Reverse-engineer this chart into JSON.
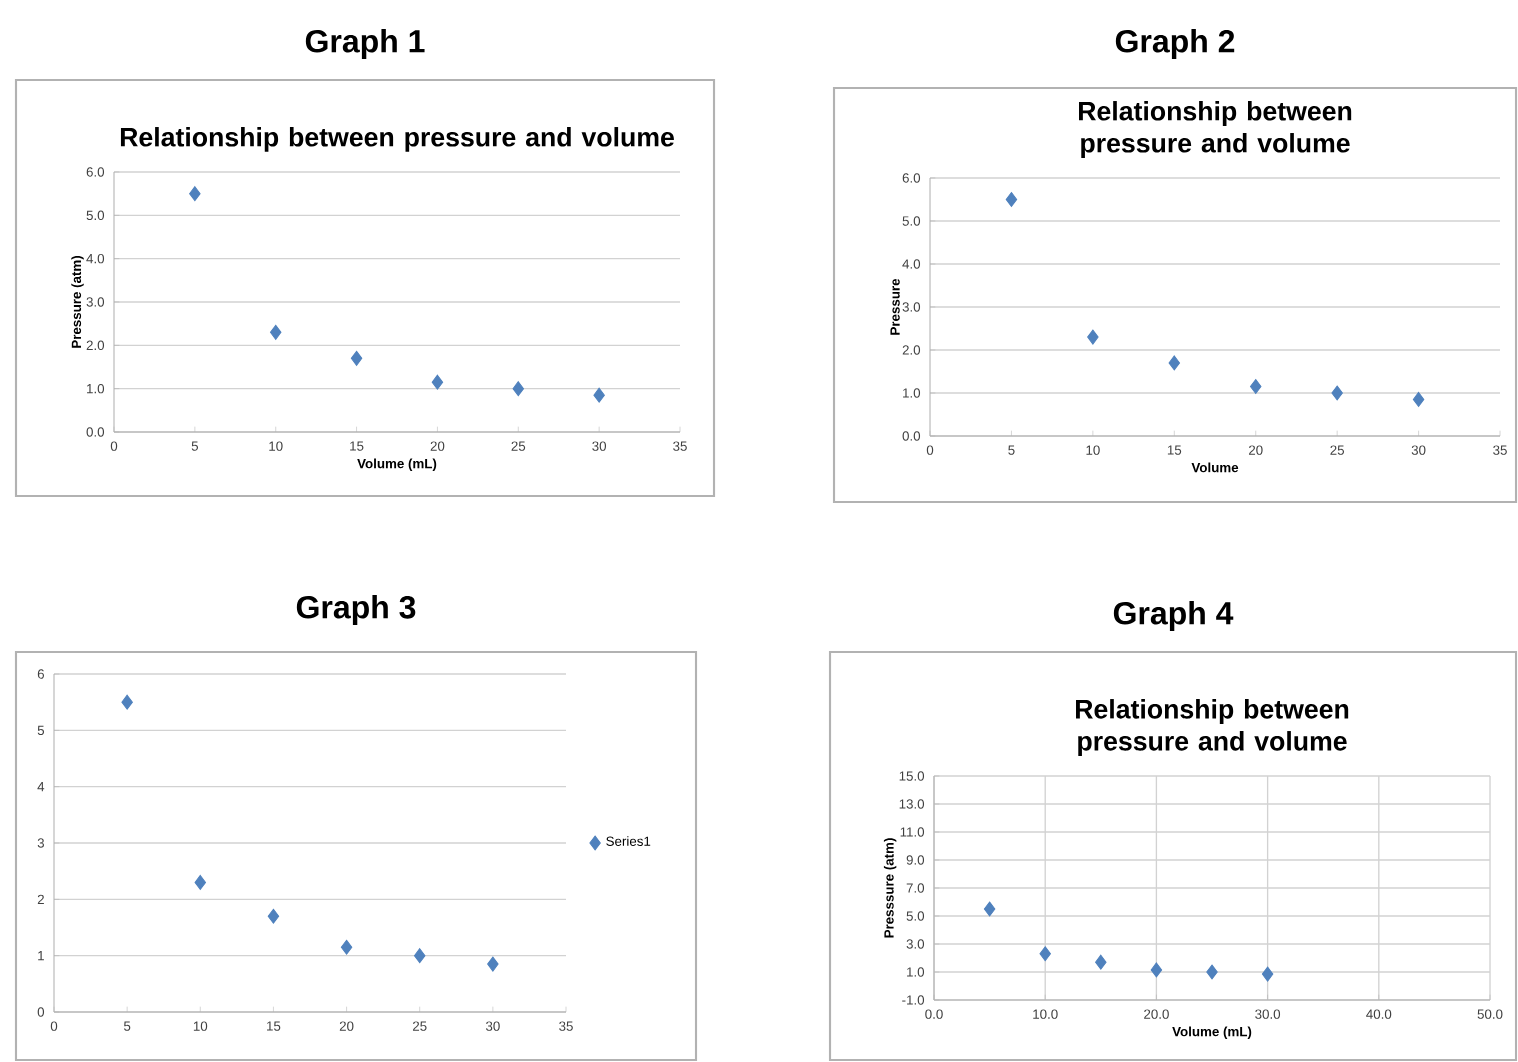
{
  "chart_data": [
    {
      "type": "scatter",
      "title": "Graph 1",
      "subtitle": "Relationship between pressure and volume",
      "xlabel": "Volume (mL)",
      "ylabel": "Pressure (atm)",
      "marker": "diamond",
      "grid": "y",
      "xlim": [
        0,
        35
      ],
      "xticks": [
        0,
        5,
        10,
        15,
        20,
        25,
        30,
        35
      ],
      "ylim": [
        0,
        6
      ],
      "yticks": [
        {
          "value": 0,
          "label": "0.0"
        },
        {
          "value": 1,
          "label": "1.0"
        },
        {
          "value": 2,
          "label": "2.0"
        },
        {
          "value": 3,
          "label": "3.0"
        },
        {
          "value": 4,
          "label": "4.0"
        },
        {
          "value": 5,
          "label": "5.0"
        },
        {
          "value": 6,
          "label": "6.0"
        }
      ],
      "series": [
        {
          "color": "#4f81bd",
          "x": [
            5,
            10,
            15,
            20,
            25,
            30
          ],
          "values": [
            5.5,
            2.3,
            1.7,
            1.15,
            1.0,
            0.85
          ]
        }
      ]
    },
    {
      "type": "scatter",
      "title": "Graph 2",
      "subtitle": "Relationship between pressure and volume",
      "xlabel": "Volume",
      "ylabel": "Pressure",
      "marker": "diamond",
      "grid": "y",
      "xlim": [
        0,
        35
      ],
      "xticks": [
        0,
        5,
        10,
        15,
        20,
        25,
        30,
        35
      ],
      "ylim": [
        0,
        6
      ],
      "yticks": [
        {
          "value": 0,
          "label": "0.0"
        },
        {
          "value": 1,
          "label": "1.0"
        },
        {
          "value": 2,
          "label": "2.0"
        },
        {
          "value": 3,
          "label": "3.0"
        },
        {
          "value": 4,
          "label": "4.0"
        },
        {
          "value": 5,
          "label": "5.0"
        },
        {
          "value": 6,
          "label": "6.0"
        }
      ],
      "series": [
        {
          "color": "#4f81bd",
          "x": [
            5,
            10,
            15,
            20,
            25,
            30
          ],
          "values": [
            5.5,
            2.3,
            1.7,
            1.15,
            1.0,
            0.85
          ]
        }
      ]
    },
    {
      "type": "scatter",
      "title": "Graph 3",
      "marker": "diamond",
      "grid": "y",
      "legend": "right",
      "xlim": [
        0,
        35
      ],
      "xticks": [
        0,
        5,
        10,
        15,
        20,
        25,
        30,
        35
      ],
      "ylim": [
        0,
        6
      ],
      "yticks": [
        0,
        1,
        2,
        3,
        4,
        5,
        6
      ],
      "series": [
        {
          "name": "Series1",
          "color": "#4f81bd",
          "x": [
            5,
            10,
            15,
            20,
            25,
            30
          ],
          "values": [
            5.5,
            2.3,
            1.7,
            1.15,
            1.0,
            0.85
          ]
        }
      ]
    },
    {
      "type": "scatter",
      "title": "Graph 4",
      "subtitle": "Relationship between pressure and volume",
      "xlabel": "Volume (mL)",
      "ylabel": "Presssure (atm)",
      "marker": "diamond",
      "grid": true,
      "xlim": [
        0,
        50
      ],
      "xticks": [
        {
          "value": 0,
          "label": "0.0"
        },
        {
          "value": 10,
          "label": "10.0"
        },
        {
          "value": 20,
          "label": "20.0"
        },
        {
          "value": 30,
          "label": "30.0"
        },
        {
          "value": 40,
          "label": "40.0"
        },
        {
          "value": 50,
          "label": "50.0"
        }
      ],
      "ylim": [
        -1,
        15
      ],
      "yticks": [
        {
          "value": -1,
          "label": "-1.0"
        },
        {
          "value": 1,
          "label": "1.0"
        },
        {
          "value": 3,
          "label": "3.0"
        },
        {
          "value": 5,
          "label": "5.0"
        },
        {
          "value": 7,
          "label": "7.0"
        },
        {
          "value": 9,
          "label": "9.0"
        },
        {
          "value": 11,
          "label": "11.0"
        },
        {
          "value": 13,
          "label": "13.0"
        },
        {
          "value": 15,
          "label": "15.0"
        }
      ],
      "series": [
        {
          "color": "#4f81bd",
          "x": [
            5,
            10,
            15,
            20,
            25,
            30
          ],
          "values": [
            5.5,
            2.3,
            1.7,
            1.15,
            1.0,
            0.85
          ]
        }
      ]
    }
  ]
}
